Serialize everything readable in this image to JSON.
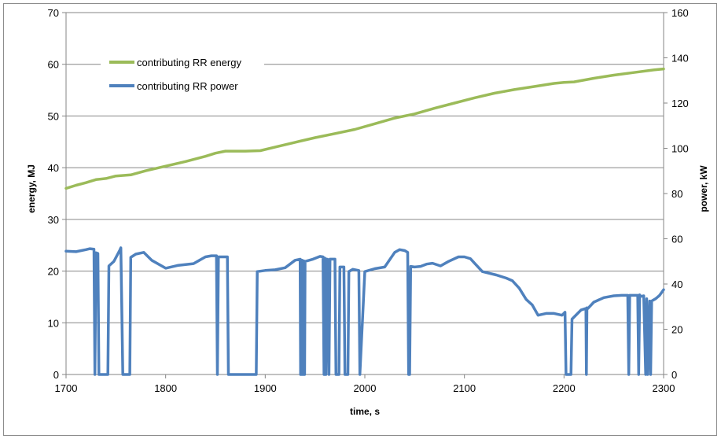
{
  "chart_data": {
    "type": "line",
    "title": "",
    "xlabel": "time, s",
    "ylabel_left": "energy, MJ",
    "ylabel_right": "power, kW",
    "xlim": [
      1700,
      2300
    ],
    "ylim_left": [
      0,
      70
    ],
    "ylim_right": [
      0,
      160
    ],
    "x_ticks": [
      "1700",
      "1800",
      "1900",
      "2000",
      "2100",
      "2200",
      "2300"
    ],
    "y_ticks_left": [
      "0",
      "10",
      "20",
      "30",
      "40",
      "50",
      "60",
      "70"
    ],
    "y_ticks_right": [
      "0",
      "20",
      "40",
      "60",
      "80",
      "100",
      "120",
      "140",
      "160"
    ],
    "grid": "horizontal",
    "legend_position": "top-left",
    "series": [
      {
        "name": "contributing RR energy",
        "axis": "left",
        "color": "#9bbb59",
        "x": [
          1700,
          1710,
          1720,
          1730,
          1740,
          1750,
          1765,
          1780,
          1800,
          1820,
          1840,
          1850,
          1860,
          1880,
          1895,
          1910,
          1930,
          1950,
          1970,
          1990,
          2010,
          2030,
          2050,
          2070,
          2090,
          2110,
          2130,
          2150,
          2170,
          2190,
          2200,
          2210,
          2230,
          2250,
          2270,
          2290,
          2300
        ],
        "y": [
          36.0,
          36.6,
          37.1,
          37.7,
          37.9,
          38.4,
          38.6,
          39.4,
          40.3,
          41.2,
          42.2,
          42.8,
          43.2,
          43.2,
          43.3,
          44.0,
          44.9,
          45.8,
          46.6,
          47.4,
          48.5,
          49.6,
          50.4,
          51.5,
          52.5,
          53.5,
          54.4,
          55.1,
          55.7,
          56.3,
          56.5,
          56.6,
          57.3,
          57.9,
          58.4,
          58.9,
          59.1
        ]
      },
      {
        "name": "contributing RR power",
        "axis": "right",
        "color": "#4f81bd",
        "x": [
          1700,
          1710,
          1720,
          1724,
          1728,
          1729,
          1730,
          1732,
          1733,
          1734,
          1742,
          1743,
          1748,
          1754,
          1755,
          1757,
          1764,
          1765,
          1770,
          1778,
          1786,
          1800,
          1812,
          1820,
          1828,
          1840,
          1846,
          1851,
          1852,
          1853,
          1855,
          1856,
          1862,
          1863,
          1891,
          1892,
          1900,
          1910,
          1920,
          1930,
          1935,
          1935.5,
          1936,
          1936.5,
          1937,
          1937.5,
          1938,
          1938.5,
          1939,
          1939.5,
          1940,
          1948,
          1955,
          1958,
          1959,
          1959.5,
          1960,
          1960.5,
          1961,
          1962,
          1963,
          1964,
          1965,
          1970,
          1971,
          1974,
          1975,
          1979,
          1980,
          1983,
          1984,
          1988,
          1994,
          1995,
          2000,
          2010,
          2020,
          2030,
          2035,
          2040,
          2043,
          2044,
          2045,
          2046,
          2050,
          2056,
          2062,
          2068,
          2076,
          2084,
          2094,
          2100,
          2106,
          2112,
          2118,
          2132,
          2142,
          2148,
          2155,
          2162,
          2168,
          2174,
          2182,
          2190,
          2198,
          2201,
          2202,
          2207,
          2208,
          2217,
          2222,
          2222.5,
          2223,
          2224,
          2230,
          2240,
          2250,
          2258,
          2264,
          2265,
          2266,
          2267,
          2274,
          2275,
          2276,
          2277,
          2280,
          2282,
          2283,
          2284,
          2286,
          2287,
          2288,
          2292,
          2296,
          2300
        ],
        "y": [
          54.5,
          54.3,
          55.2,
          55.6,
          55.4,
          0,
          53.8,
          53.5,
          0,
          0,
          0,
          48,
          50,
          55,
          56,
          0,
          0,
          51.8,
          53.2,
          54.0,
          50.5,
          47.0,
          48.2,
          48.6,
          49.0,
          52.0,
          52.5,
          52.5,
          0,
          52.0,
          52.0,
          52.0,
          52.0,
          0,
          0,
          45.5,
          46.0,
          46.3,
          47.2,
          50.5,
          51.0,
          0,
          50.7,
          0,
          50.5,
          0,
          50.3,
          0,
          50.2,
          0,
          50.0,
          51.0,
          52.2,
          52.0,
          0,
          51.5,
          0,
          51.2,
          0,
          51.0,
          50.8,
          0,
          51.0,
          51.0,
          0,
          0,
          47.5,
          47.5,
          0,
          0,
          45.5,
          46.5,
          46.0,
          0,
          45.5,
          46.8,
          47.5,
          54.0,
          55.2,
          54.8,
          54.0,
          0,
          0,
          47.8,
          47.5,
          47.8,
          48.8,
          49.2,
          48.0,
          50.0,
          52.0,
          52.0,
          51.2,
          48.3,
          45.5,
          44.0,
          42.6,
          41.5,
          38.2,
          33.2,
          30.8,
          26.2,
          27.0,
          27.0,
          26.2,
          27.5,
          0,
          0,
          24.5,
          28.5,
          29.2,
          0,
          29.5,
          29.2,
          32.0,
          34.0,
          34.8,
          35.0,
          35.0,
          0,
          35.0,
          35.0,
          35.0,
          0,
          35.2,
          34.5,
          34.8,
          0,
          33.5,
          0,
          32.5,
          0,
          32.5,
          33.5,
          35.0,
          37.5
        ]
      }
    ]
  }
}
